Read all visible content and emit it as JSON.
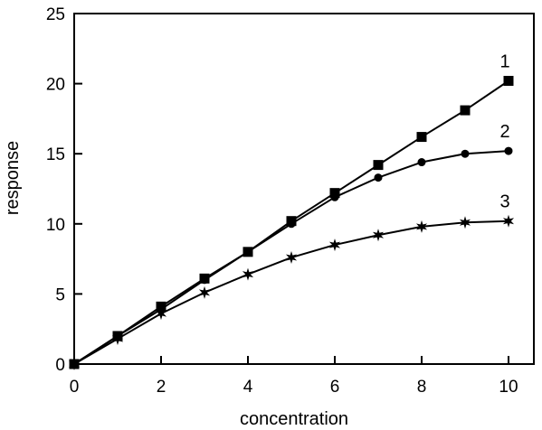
{
  "chart_data": {
    "type": "line",
    "title": "",
    "xlabel": "concentration",
    "ylabel": "response",
    "xlim": [
      0,
      10
    ],
    "ylim": [
      0,
      25
    ],
    "x_ticks": [
      0,
      2,
      4,
      6,
      8,
      10
    ],
    "y_ticks": [
      0,
      5,
      10,
      15,
      20,
      25
    ],
    "grid": false,
    "series": [
      {
        "name": "1",
        "marker": "square",
        "x": [
          0,
          1,
          2,
          3,
          4,
          5,
          6,
          7,
          8,
          9,
          10
        ],
        "values": [
          0,
          2.0,
          4.1,
          6.1,
          8.0,
          10.2,
          12.2,
          14.2,
          16.2,
          18.1,
          20.2
        ]
      },
      {
        "name": "2",
        "marker": "circle",
        "x": [
          0,
          1,
          2,
          3,
          4,
          5,
          6,
          7,
          8,
          9,
          10
        ],
        "values": [
          0,
          2.0,
          3.9,
          6.0,
          8.0,
          10.0,
          11.9,
          13.3,
          14.4,
          15.0,
          15.2
        ]
      },
      {
        "name": "3",
        "marker": "star",
        "x": [
          0,
          1,
          2,
          3,
          4,
          5,
          6,
          7,
          8,
          9,
          10
        ],
        "values": [
          0,
          1.8,
          3.6,
          5.1,
          6.4,
          7.6,
          8.5,
          9.2,
          9.8,
          10.1,
          10.2
        ]
      }
    ]
  }
}
